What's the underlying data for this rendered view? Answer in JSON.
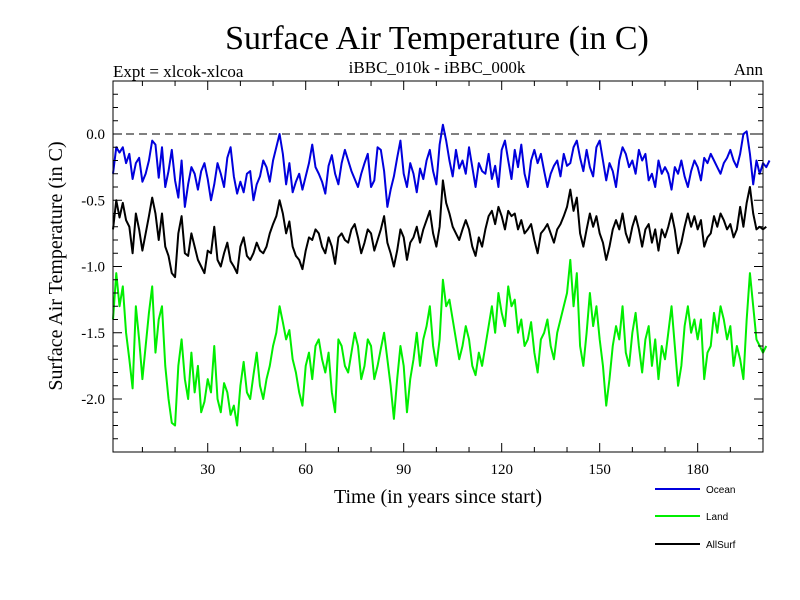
{
  "chart_data": {
    "type": "line",
    "title": "Surface Air Temperature (in C)",
    "subtitle_left": "Expt = xlcok-xlcoa",
    "subtitle_center": "iBBC_010k - iBBC_000k",
    "subtitle_right": "Ann",
    "xlabel": "Time (in years since start)",
    "ylabel": "Surface Air Temperature (in C)",
    "xlim": [
      1,
      200
    ],
    "ylim": [
      -2.4,
      0.4
    ],
    "xticks": [
      30,
      60,
      90,
      120,
      150,
      180
    ],
    "xtick_labels": [
      "30",
      "60",
      "90",
      "120",
      "150",
      "180"
    ],
    "yticks": [
      0.0,
      -0.5,
      -1.0,
      -1.5,
      -2.0
    ],
    "ytick_labels": [
      "0.0",
      "-0.5",
      "-1.0",
      "-1.5",
      "-2.0"
    ],
    "reference_line": 0.0,
    "series": [
      {
        "name": "Ocean",
        "color": "#0000dd",
        "values": [
          -0.3,
          -0.1,
          -0.14,
          -0.1,
          -0.22,
          -0.15,
          -0.34,
          -0.22,
          -0.18,
          -0.36,
          -0.3,
          -0.2,
          -0.05,
          -0.08,
          -0.33,
          -0.1,
          -0.4,
          -0.28,
          -0.12,
          -0.35,
          -0.48,
          -0.2,
          -0.55,
          -0.38,
          -0.25,
          -0.3,
          -0.42,
          -0.28,
          -0.22,
          -0.34,
          -0.5,
          -0.38,
          -0.22,
          -0.3,
          -0.4,
          -0.18,
          -0.1,
          -0.32,
          -0.45,
          -0.36,
          -0.44,
          -0.3,
          -0.28,
          -0.5,
          -0.38,
          -0.32,
          -0.2,
          -0.25,
          -0.36,
          -0.2,
          -0.1,
          0.0,
          -0.15,
          -0.38,
          -0.22,
          -0.44,
          -0.36,
          -0.3,
          -0.42,
          -0.32,
          -0.22,
          -0.08,
          -0.25,
          -0.3,
          -0.36,
          -0.45,
          -0.24,
          -0.16,
          -0.3,
          -0.38,
          -0.22,
          -0.12,
          -0.2,
          -0.28,
          -0.34,
          -0.4,
          -0.3,
          -0.22,
          -0.15,
          -0.4,
          -0.35,
          -0.1,
          -0.12,
          -0.28,
          -0.55,
          -0.42,
          -0.32,
          -0.18,
          -0.05,
          -0.3,
          -0.4,
          -0.22,
          -0.3,
          -0.44,
          -0.26,
          -0.34,
          -0.2,
          -0.12,
          -0.28,
          -0.38,
          -0.08,
          0.07,
          -0.05,
          -0.2,
          -0.32,
          -0.12,
          -0.26,
          -0.2,
          -0.3,
          -0.1,
          -0.25,
          -0.4,
          -0.22,
          -0.28,
          -0.3,
          -0.15,
          -0.34,
          -0.24,
          -0.4,
          -0.12,
          -0.05,
          -0.2,
          -0.34,
          -0.12,
          -0.25,
          -0.08,
          -0.3,
          -0.4,
          -0.2,
          -0.12,
          -0.22,
          -0.15,
          -0.28,
          -0.4,
          -0.3,
          -0.24,
          -0.2,
          -0.32,
          -0.15,
          -0.24,
          -0.22,
          -0.1,
          -0.05,
          -0.18,
          -0.28,
          -0.12,
          -0.25,
          -0.32,
          -0.1,
          -0.05,
          -0.2,
          -0.35,
          -0.22,
          -0.28,
          -0.4,
          -0.2,
          -0.1,
          -0.15,
          -0.25,
          -0.2,
          -0.3,
          -0.12,
          -0.2,
          -0.15,
          -0.35,
          -0.3,
          -0.4,
          -0.2,
          -0.3,
          -0.25,
          -0.3,
          -0.42,
          -0.25,
          -0.3,
          -0.2,
          -0.32,
          -0.4,
          -0.28,
          -0.2,
          -0.25,
          -0.35,
          -0.18,
          -0.22,
          -0.15,
          -0.2,
          -0.25,
          -0.3,
          -0.22,
          -0.18,
          -0.12,
          -0.2,
          -0.25,
          -0.15,
          0.0,
          0.02,
          -0.15,
          -0.38,
          -0.2,
          -0.3,
          -0.22,
          -0.25,
          -0.2
        ]
      },
      {
        "name": "Land",
        "color": "#00ee00",
        "values": [
          -1.4,
          -1.05,
          -1.3,
          -1.15,
          -1.5,
          -1.7,
          -1.92,
          -1.3,
          -1.55,
          -1.85,
          -1.6,
          -1.35,
          -1.15,
          -1.65,
          -1.4,
          -1.3,
          -1.75,
          -2.0,
          -2.18,
          -2.2,
          -1.75,
          -1.55,
          -1.85,
          -2.0,
          -1.65,
          -1.95,
          -1.75,
          -2.1,
          -2.02,
          -1.85,
          -1.95,
          -1.6,
          -2.0,
          -2.1,
          -1.88,
          -1.95,
          -2.12,
          -2.05,
          -2.2,
          -1.9,
          -1.72,
          -1.95,
          -2.0,
          -1.82,
          -1.65,
          -1.9,
          -2.0,
          -1.85,
          -1.75,
          -1.6,
          -1.5,
          -1.3,
          -1.42,
          -1.55,
          -1.48,
          -1.7,
          -1.8,
          -1.95,
          -2.05,
          -1.75,
          -1.65,
          -1.85,
          -1.6,
          -1.55,
          -1.7,
          -1.8,
          -1.65,
          -1.95,
          -2.1,
          -1.55,
          -1.6,
          -1.75,
          -1.8,
          -1.65,
          -1.5,
          -1.6,
          -1.85,
          -1.75,
          -1.55,
          -1.6,
          -1.85,
          -1.75,
          -1.62,
          -1.5,
          -1.7,
          -1.9,
          -2.15,
          -1.85,
          -1.6,
          -1.75,
          -2.1,
          -1.85,
          -1.7,
          -1.5,
          -1.75,
          -1.55,
          -1.45,
          -1.3,
          -1.6,
          -1.75,
          -1.55,
          -1.1,
          -1.3,
          -1.25,
          -1.4,
          -1.55,
          -1.7,
          -1.6,
          -1.45,
          -1.55,
          -1.75,
          -1.82,
          -1.65,
          -1.75,
          -1.6,
          -1.45,
          -1.3,
          -1.5,
          -1.2,
          -1.35,
          -1.45,
          -1.15,
          -1.3,
          -1.25,
          -1.5,
          -1.4,
          -1.6,
          -1.55,
          -1.42,
          -1.65,
          -1.8,
          -1.55,
          -1.5,
          -1.4,
          -1.6,
          -1.7,
          -1.5,
          -1.4,
          -1.3,
          -1.2,
          -0.95,
          -1.3,
          -1.05,
          -1.6,
          -1.75,
          -1.5,
          -1.2,
          -1.45,
          -1.3,
          -1.55,
          -1.75,
          -2.05,
          -1.85,
          -1.6,
          -1.45,
          -1.55,
          -1.3,
          -1.65,
          -1.75,
          -1.5,
          -1.35,
          -1.6,
          -1.8,
          -1.55,
          -1.45,
          -1.75,
          -1.55,
          -1.85,
          -1.6,
          -1.7,
          -1.5,
          -1.3,
          -1.6,
          -1.9,
          -1.75,
          -1.45,
          -1.3,
          -1.5,
          -1.4,
          -1.55,
          -1.4,
          -1.85,
          -1.65,
          -1.6,
          -1.35,
          -1.5,
          -1.3,
          -1.4,
          -1.55,
          -1.45,
          -1.75,
          -1.6,
          -1.7,
          -1.85,
          -1.4,
          -1.05,
          -1.3,
          -1.55,
          -1.6,
          -1.65,
          -1.6
        ]
      },
      {
        "name": "AllSurf",
        "color": "#000000",
        "values": [
          -0.72,
          -0.5,
          -0.63,
          -0.52,
          -0.65,
          -0.7,
          -0.9,
          -0.6,
          -0.72,
          -0.88,
          -0.75,
          -0.62,
          -0.48,
          -0.6,
          -0.8,
          -0.6,
          -0.85,
          -0.92,
          -1.05,
          -1.08,
          -0.75,
          -0.62,
          -0.9,
          -0.92,
          -0.75,
          -0.85,
          -0.95,
          -1.0,
          -1.05,
          -0.88,
          -0.9,
          -0.7,
          -0.95,
          -1.0,
          -0.9,
          -0.82,
          -0.96,
          -1.0,
          -1.05,
          -0.85,
          -0.78,
          -0.92,
          -0.95,
          -0.9,
          -0.82,
          -0.88,
          -0.9,
          -0.85,
          -0.75,
          -0.68,
          -0.62,
          -0.5,
          -0.6,
          -0.75,
          -0.66,
          -0.85,
          -0.92,
          -0.95,
          -1.02,
          -0.88,
          -0.78,
          -0.8,
          -0.72,
          -0.75,
          -0.85,
          -0.9,
          -0.78,
          -0.85,
          -0.98,
          -0.78,
          -0.75,
          -0.8,
          -0.82,
          -0.72,
          -0.68,
          -0.78,
          -0.9,
          -0.82,
          -0.72,
          -0.75,
          -0.88,
          -0.8,
          -0.72,
          -0.62,
          -0.82,
          -0.9,
          -1.0,
          -0.88,
          -0.72,
          -0.78,
          -0.95,
          -0.82,
          -0.78,
          -0.7,
          -0.82,
          -0.72,
          -0.65,
          -0.58,
          -0.75,
          -0.85,
          -0.7,
          -0.35,
          -0.52,
          -0.6,
          -0.7,
          -0.75,
          -0.8,
          -0.72,
          -0.65,
          -0.72,
          -0.85,
          -0.92,
          -0.78,
          -0.85,
          -0.72,
          -0.62,
          -0.58,
          -0.68,
          -0.55,
          -0.62,
          -0.72,
          -0.58,
          -0.62,
          -0.6,
          -0.72,
          -0.65,
          -0.75,
          -0.72,
          -0.68,
          -0.8,
          -0.9,
          -0.75,
          -0.72,
          -0.68,
          -0.75,
          -0.82,
          -0.72,
          -0.68,
          -0.62,
          -0.55,
          -0.42,
          -0.58,
          -0.48,
          -0.75,
          -0.85,
          -0.72,
          -0.6,
          -0.7,
          -0.62,
          -0.75,
          -0.82,
          -0.95,
          -0.85,
          -0.72,
          -0.65,
          -0.72,
          -0.6,
          -0.75,
          -0.82,
          -0.7,
          -0.62,
          -0.72,
          -0.85,
          -0.72,
          -0.68,
          -0.82,
          -0.72,
          -0.88,
          -0.72,
          -0.78,
          -0.7,
          -0.6,
          -0.72,
          -0.9,
          -0.82,
          -0.7,
          -0.6,
          -0.7,
          -0.62,
          -0.72,
          -0.65,
          -0.85,
          -0.78,
          -0.75,
          -0.62,
          -0.7,
          -0.6,
          -0.65,
          -0.72,
          -0.68,
          -0.78,
          -0.72,
          -0.55,
          -0.7,
          -0.52,
          -0.4,
          -0.6,
          -0.72,
          -0.7,
          -0.72,
          -0.7
        ]
      }
    ],
    "legend": {
      "placement": "bottom-right",
      "entries": [
        "Ocean",
        "Land",
        "AllSurf"
      ]
    }
  }
}
